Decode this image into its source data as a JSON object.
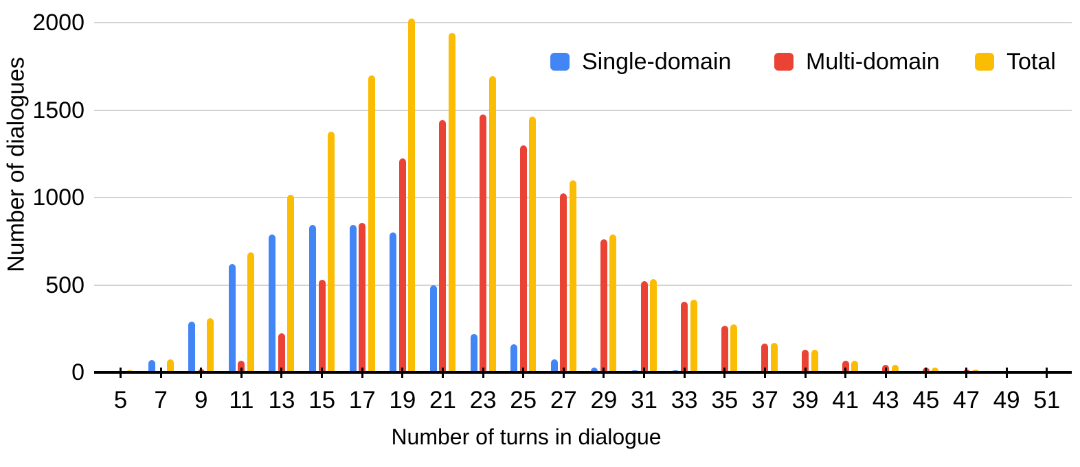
{
  "chart_data": {
    "type": "bar",
    "title": "",
    "xlabel": "Number of turns in dialogue",
    "ylabel": "Number of dialogues",
    "categories": [
      5,
      7,
      9,
      11,
      13,
      15,
      17,
      19,
      21,
      23,
      25,
      27,
      29,
      31,
      33,
      35,
      37,
      39,
      41,
      43,
      45,
      47,
      49,
      51
    ],
    "series": [
      {
        "name": "Single-domain",
        "color": "#4285F4",
        "values": [
          8,
          72,
          290,
          620,
          790,
          845,
          845,
          800,
          500,
          220,
          162,
          74,
          28,
          12,
          12,
          5,
          4,
          3,
          2,
          2,
          1,
          1,
          1,
          1
        ]
      },
      {
        "name": "Multi-domain",
        "color": "#EA4335",
        "values": [
          2,
          2,
          18,
          65,
          225,
          530,
          855,
          1225,
          1442,
          1475,
          1300,
          1025,
          760,
          521,
          404,
          268,
          166,
          128,
          66,
          42,
          28,
          14,
          4,
          3
        ]
      },
      {
        "name": "Total",
        "color": "#FBBC04",
        "values": [
          10,
          74,
          308,
          685,
          1015,
          1375,
          1700,
          2025,
          1942,
          1695,
          1462,
          1099,
          788,
          533,
          416,
          273,
          170,
          131,
          68,
          44,
          29,
          15,
          5,
          4
        ]
      }
    ],
    "ylim": [
      0,
      2000
    ],
    "y_ticks": [
      "0",
      "500",
      "1000",
      "1500",
      "2000"
    ],
    "y_tick_values": [
      0,
      500,
      1000,
      1500,
      2000
    ],
    "grid": "horizontal",
    "legend_position": "top-right",
    "background_color": "#ffffff",
    "axis_color": "#000000",
    "gridline_color": "#d3d3d3",
    "text_color": "#000000"
  }
}
